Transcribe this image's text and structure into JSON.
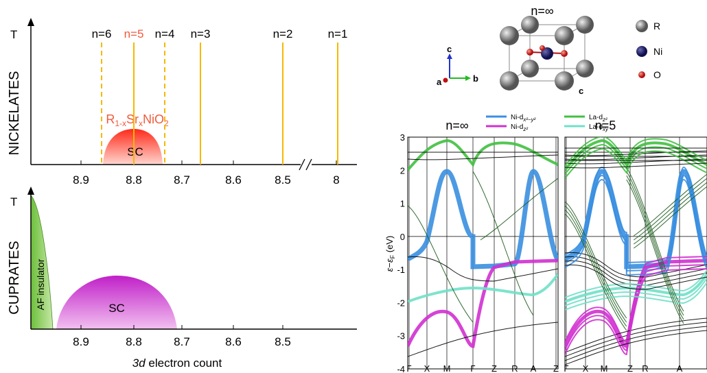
{
  "nickelates": {
    "t_label": "T",
    "title": "NICKELATES",
    "ticks": [
      "8.9",
      "8.8",
      "8.7",
      "8.6",
      "8.5",
      "8"
    ],
    "members": [
      "n=6",
      "n=5",
      "n=4",
      "n=3",
      "n=2",
      "n=1"
    ],
    "compound": [
      "R",
      "1-x",
      "Sr",
      "x",
      "NiO",
      "2"
    ],
    "dome_label": "SC"
  },
  "cuprates": {
    "t_label": "T",
    "title": "CUPRATES",
    "ticks": [
      "8.9",
      "8.8",
      "8.7",
      "8.6",
      "8.5"
    ],
    "insulator": "AF insulator",
    "dome_label": "SC"
  },
  "x_axis_label": [
    "3d",
    " electron count"
  ],
  "structure": {
    "title": "n=∞",
    "legend": [
      "R",
      "Ni",
      "O"
    ],
    "axes": [
      "c",
      "a",
      "b"
    ],
    "cell_label": "c"
  },
  "bands": {
    "legend": [
      {
        "prefix": "Ni-d",
        "sub": "x²−y²"
      },
      {
        "prefix": "Ni-d",
        "sub": "z²"
      },
      {
        "prefix": "La-d",
        "sub": "z²"
      },
      {
        "prefix": "La-d",
        "sub": "xy"
      }
    ],
    "panels": [
      "n=∞",
      "n=5"
    ],
    "yticks": [
      3,
      2,
      1,
      0,
      -1,
      -2,
      -3,
      -4
    ],
    "kpoints": [
      [
        "Γ",
        "X",
        "M",
        "Γ",
        "Z",
        "R",
        "A",
        "Z"
      ],
      [
        "Γ",
        "X",
        "M",
        "Z",
        "R",
        "A"
      ]
    ],
    "ylabel": [
      "ε−ε",
      "F",
      " (eV)"
    ]
  }
}
